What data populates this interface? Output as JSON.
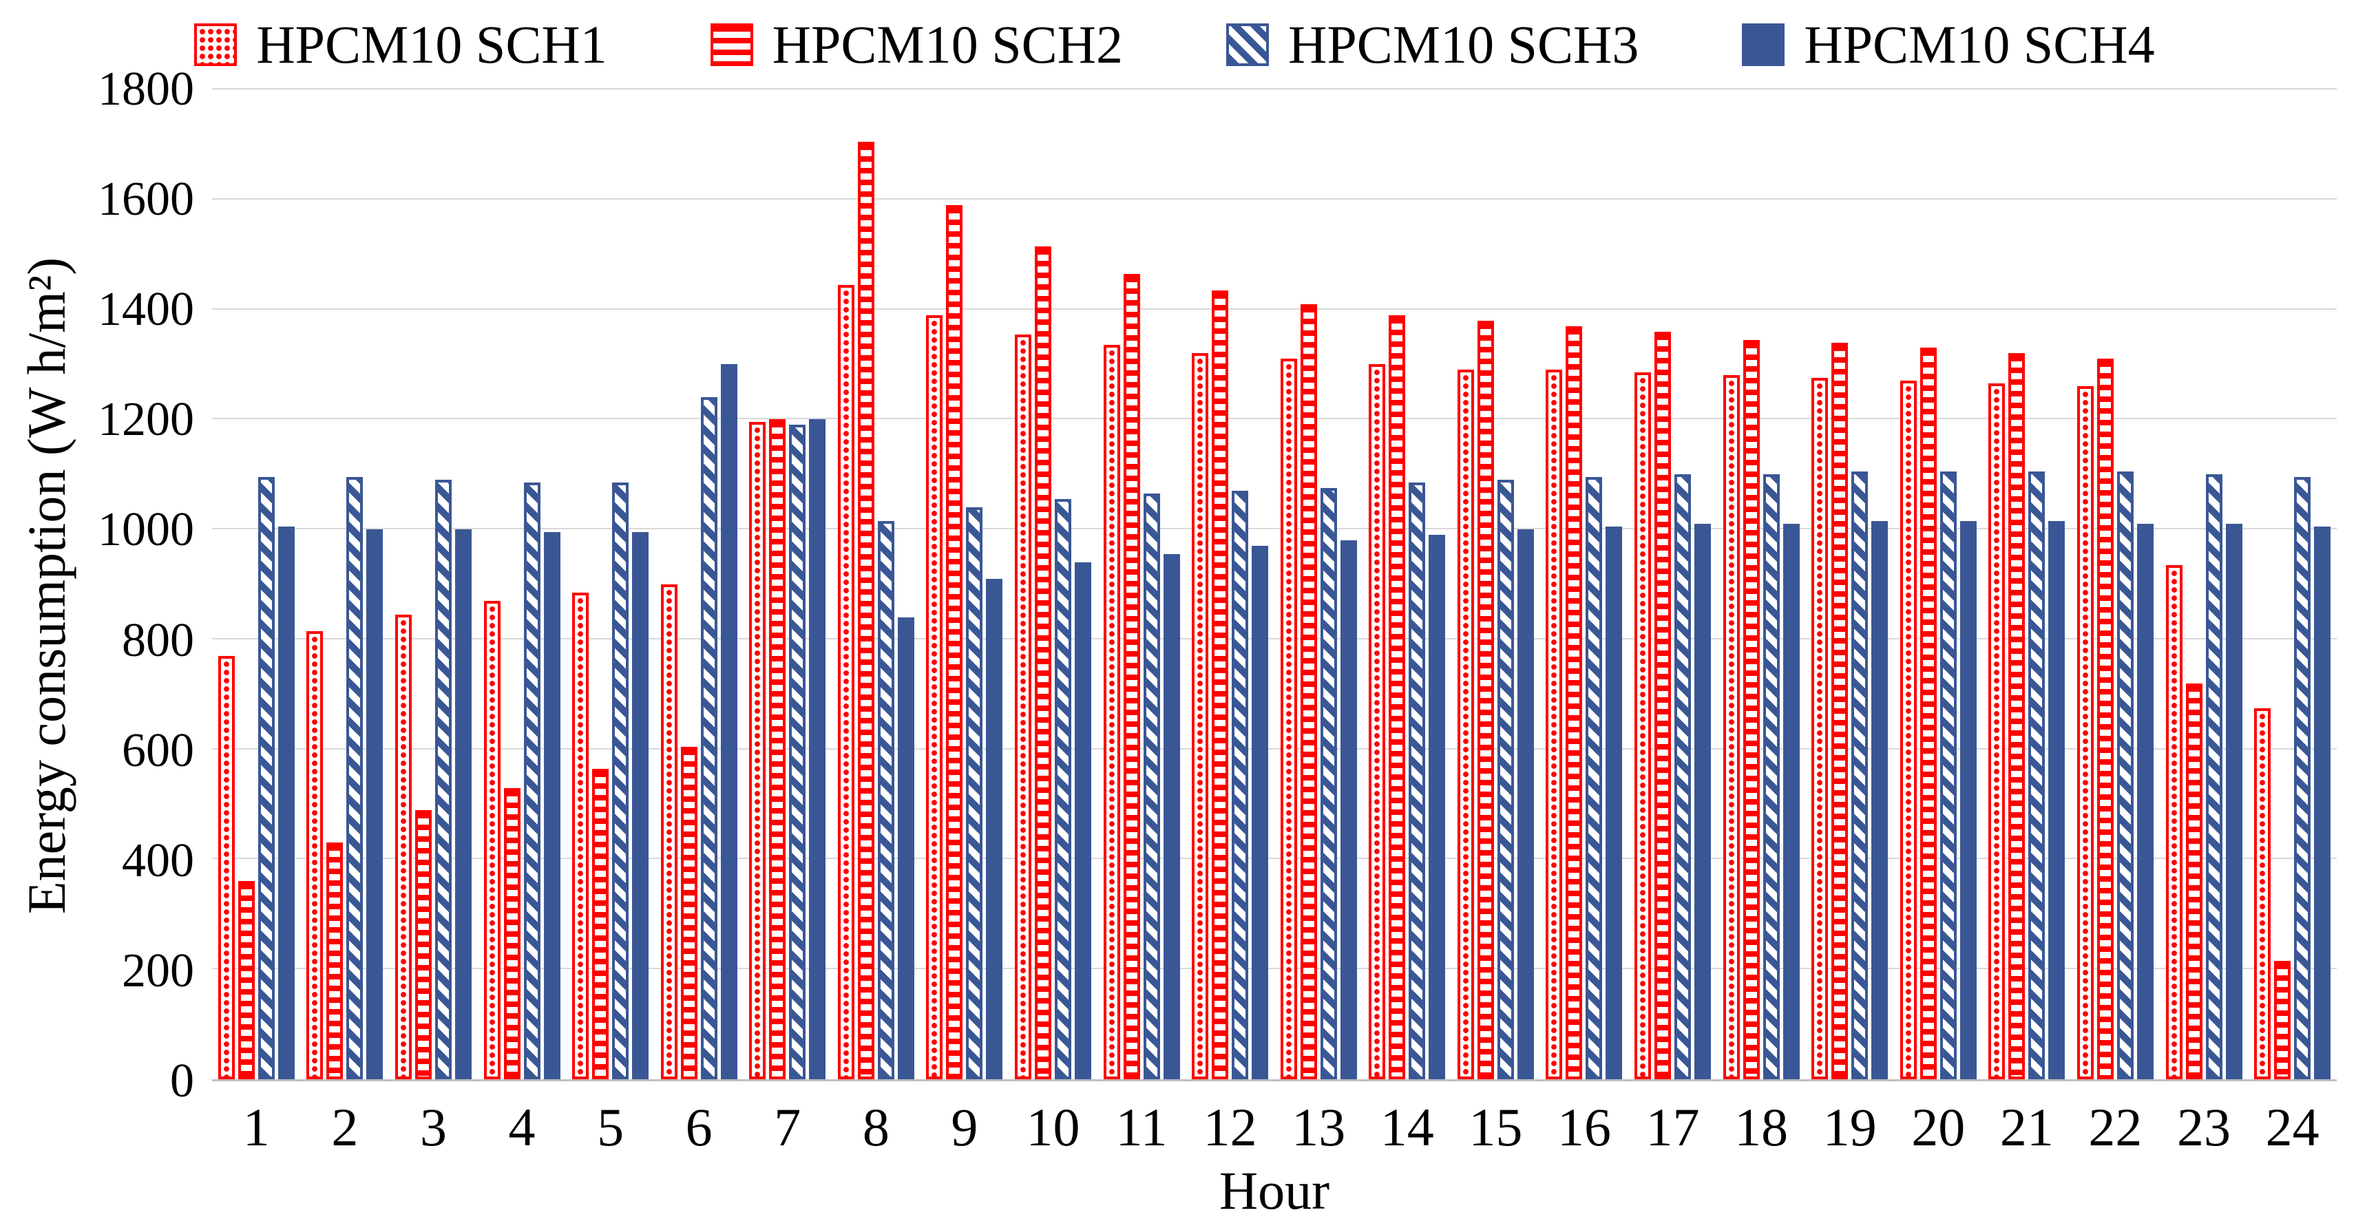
{
  "chart_data": {
    "type": "bar",
    "title": "",
    "xlabel": "Hour",
    "ylabel": "Energy consumption (W h/m²)",
    "ylim": [
      0,
      1800
    ],
    "ytick_step": 200,
    "grid": true,
    "legend_position": "top",
    "categories": [
      1,
      2,
      3,
      4,
      5,
      6,
      7,
      8,
      9,
      10,
      11,
      12,
      13,
      14,
      15,
      16,
      17,
      18,
      19,
      20,
      21,
      22,
      23,
      24
    ],
    "series": [
      {
        "name": "HPCM10 SCH1",
        "pattern": "red-dots",
        "values": [
          770,
          815,
          845,
          870,
          885,
          900,
          1195,
          1445,
          1390,
          1355,
          1335,
          1320,
          1310,
          1300,
          1290,
          1290,
          1285,
          1280,
          1275,
          1270,
          1265,
          1260,
          935,
          675
        ]
      },
      {
        "name": "HPCM10 SCH2",
        "pattern": "red-hstripes",
        "values": [
          360,
          430,
          490,
          530,
          565,
          605,
          1200,
          1705,
          1590,
          1515,
          1465,
          1435,
          1410,
          1390,
          1380,
          1370,
          1360,
          1345,
          1340,
          1330,
          1320,
          1310,
          720,
          215
        ]
      },
      {
        "name": "HPCM10 SCH3",
        "pattern": "navy-diagonal",
        "values": [
          1095,
          1095,
          1090,
          1085,
          1085,
          1240,
          1190,
          1015,
          1040,
          1055,
          1065,
          1070,
          1075,
          1085,
          1090,
          1095,
          1100,
          1100,
          1105,
          1105,
          1105,
          1105,
          1100,
          1095
        ]
      },
      {
        "name": "HPCM10 SCH4",
        "pattern": "navy-solid",
        "values": [
          1005,
          1000,
          1000,
          995,
          995,
          1300,
          1200,
          840,
          910,
          940,
          955,
          970,
          980,
          990,
          1000,
          1005,
          1010,
          1010,
          1015,
          1015,
          1015,
          1010,
          1010,
          1005
        ]
      }
    ],
    "colors": {
      "red": "#FF0000",
      "navy": "#3A5795",
      "gridline": "#D9D9D9",
      "axis": "#BFBFBF"
    }
  }
}
